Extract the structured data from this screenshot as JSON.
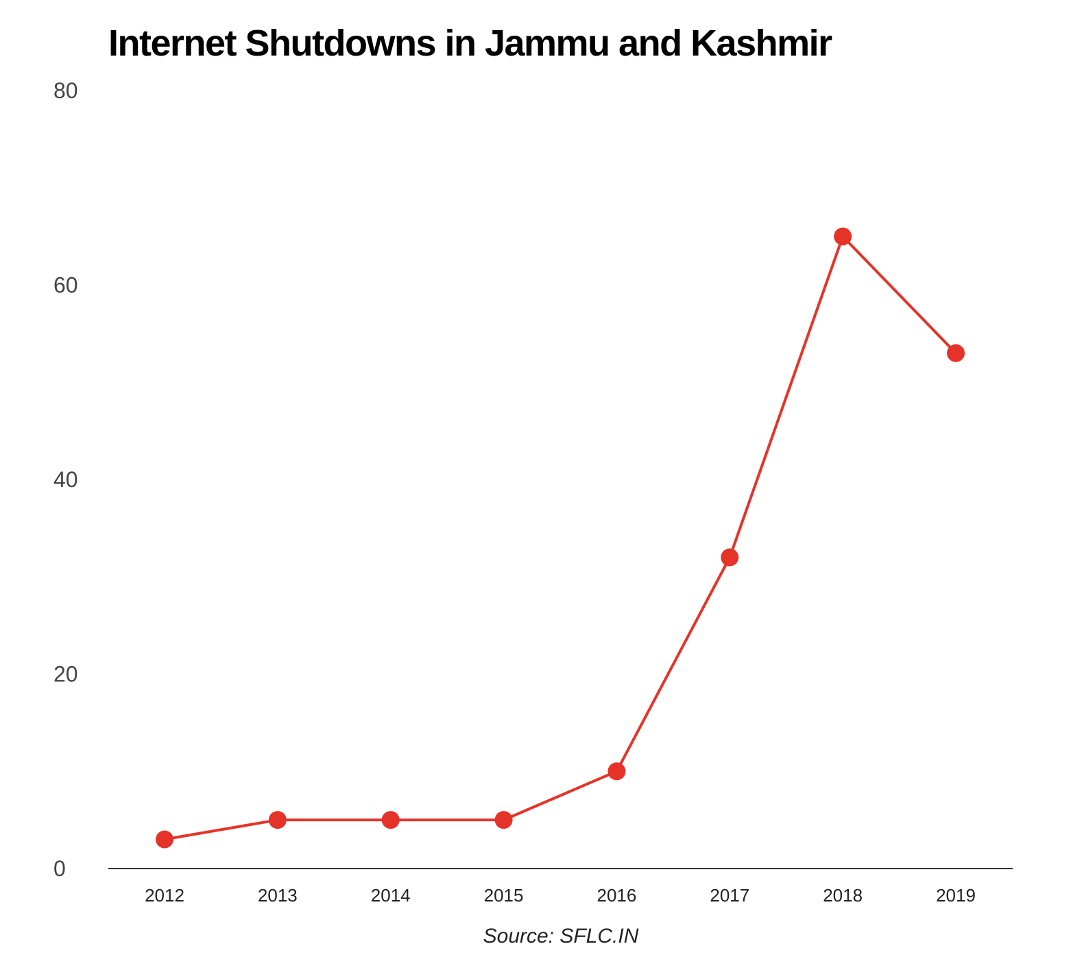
{
  "chart_data": {
    "type": "line",
    "title": "Internet Shutdowns in Jammu and Kashmir",
    "xlabel": "",
    "ylabel": "",
    "categories": [
      "2012",
      "2013",
      "2014",
      "2015",
      "2016",
      "2017",
      "2018",
      "2019"
    ],
    "series": [
      {
        "values": [
          3,
          5,
          5,
          5,
          10,
          32,
          65,
          53
        ]
      }
    ],
    "ylim": [
      0,
      80
    ],
    "yticks": [
      "0",
      "20",
      "40",
      "60",
      "80"
    ],
    "grid": false,
    "legend": "none",
    "line_color": "#e63329",
    "source": "Source: SFLC.IN"
  }
}
